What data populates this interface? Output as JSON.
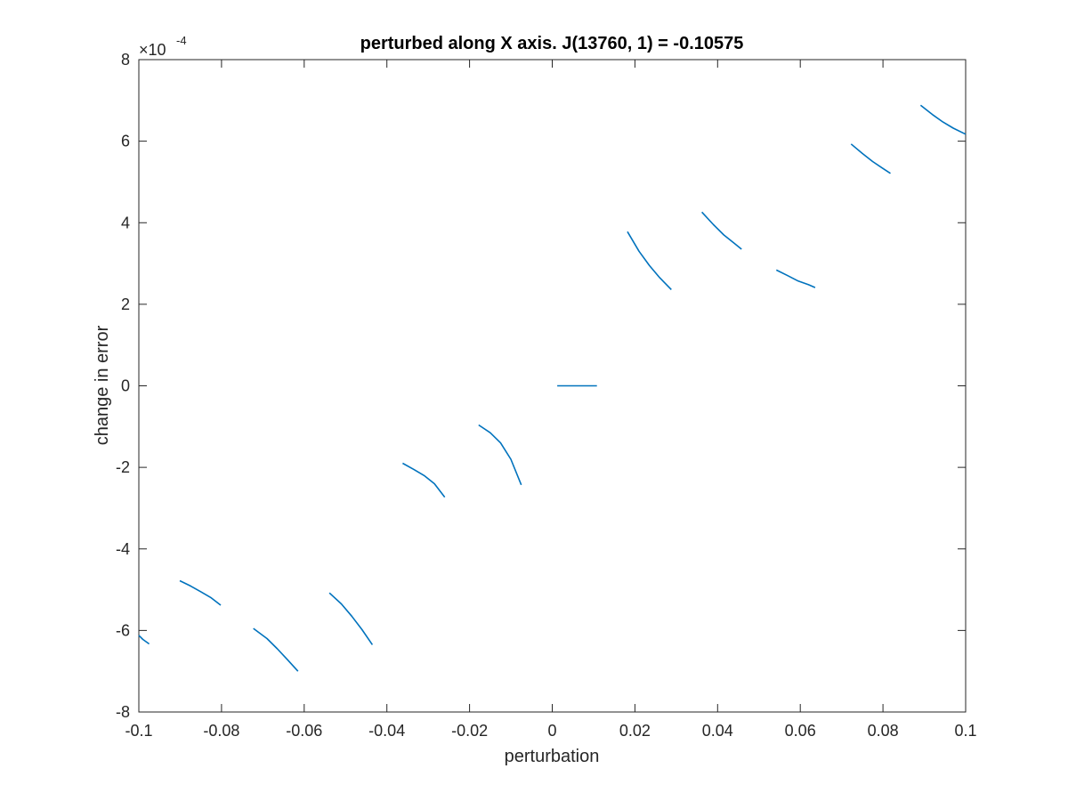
{
  "chart_data": {
    "type": "line",
    "title": "perturbed along X axis. J(13760, 1) = -0.10575",
    "xlabel": "perturbation",
    "ylabel": "change in error",
    "xlim": [
      -0.1,
      0.1
    ],
    "ylim": [
      -8,
      8
    ],
    "y_exponent_base": "×10",
    "y_exponent_power": "-4",
    "x_ticks": [
      -0.1,
      -0.08,
      -0.06,
      -0.04,
      -0.02,
      0,
      0.02,
      0.04,
      0.06,
      0.08,
      0.1
    ],
    "x_tick_labels": [
      "-0.1",
      "-0.08",
      "-0.06",
      "-0.04",
      "-0.02",
      "0",
      "0.02",
      "0.04",
      "0.06",
      "0.08",
      "0.1"
    ],
    "y_ticks": [
      -8,
      -6,
      -4,
      -2,
      0,
      2,
      4,
      6,
      8
    ],
    "y_tick_labels": [
      "-8",
      "-6",
      "-4",
      "-2",
      "0",
      "2",
      "4",
      "6",
      "8"
    ],
    "grid": false,
    "line_color": "#0072BD",
    "segments": [
      {
        "x": [
          -0.1,
          -0.099,
          -0.0975
        ],
        "y": [
          -6.12,
          -6.22,
          -6.33
        ]
      },
      {
        "x": [
          -0.0901,
          -0.0875,
          -0.085,
          -0.0825,
          -0.0802
        ],
        "y": [
          -4.78,
          -4.91,
          -5.05,
          -5.2,
          -5.38
        ]
      },
      {
        "x": [
          -0.0723,
          -0.069,
          -0.0665,
          -0.064,
          -0.0615
        ],
        "y": [
          -5.95,
          -6.2,
          -6.45,
          -6.72,
          -7.0
        ]
      },
      {
        "x": [
          -0.0539,
          -0.051,
          -0.0485,
          -0.046,
          -0.0435
        ],
        "y": [
          -5.08,
          -5.35,
          -5.65,
          -5.98,
          -6.35
        ]
      },
      {
        "x": [
          -0.0362,
          -0.0335,
          -0.031,
          -0.0285,
          -0.026
        ],
        "y": [
          -1.9,
          -2.05,
          -2.2,
          -2.4,
          -2.73
        ]
      },
      {
        "x": [
          -0.0178,
          -0.015,
          -0.0125,
          -0.01,
          -0.0075
        ],
        "y": [
          -0.96,
          -1.15,
          -1.4,
          -1.8,
          -2.43
        ]
      },
      {
        "x": [
          0.0012,
          0.006,
          0.0108
        ],
        "y": [
          0.0,
          0.0,
          0.0
        ]
      },
      {
        "x": [
          0.0182,
          0.021,
          0.0235,
          0.026,
          0.0288
        ],
        "y": [
          3.78,
          3.3,
          2.95,
          2.65,
          2.36
        ]
      },
      {
        "x": [
          0.0362,
          0.039,
          0.0415,
          0.044,
          0.0458
        ],
        "y": [
          4.26,
          3.95,
          3.7,
          3.5,
          3.35
        ]
      },
      {
        "x": [
          0.0542,
          0.057,
          0.0595,
          0.062,
          0.0636
        ],
        "y": [
          2.84,
          2.7,
          2.57,
          2.48,
          2.41
        ]
      },
      {
        "x": [
          0.0723,
          0.075,
          0.0775,
          0.08,
          0.0818
        ],
        "y": [
          5.93,
          5.7,
          5.5,
          5.33,
          5.21
        ]
      },
      {
        "x": [
          0.0891,
          0.092,
          0.0945,
          0.097,
          0.1
        ],
        "y": [
          6.88,
          6.65,
          6.47,
          6.32,
          6.17
        ]
      }
    ]
  }
}
